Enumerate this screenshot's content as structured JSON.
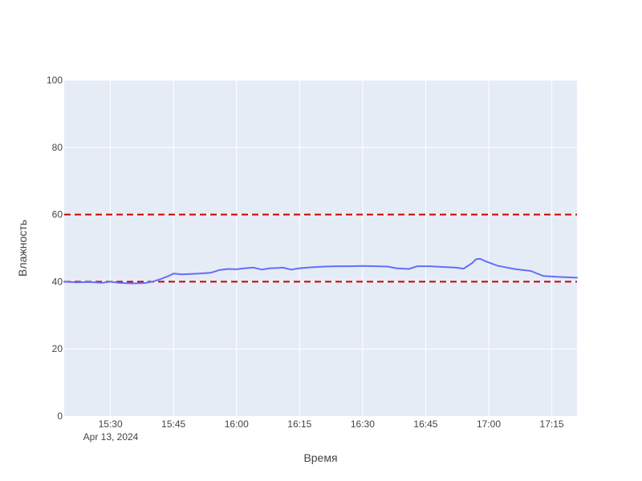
{
  "chart_data": {
    "type": "line",
    "xlabel": "Время",
    "ylabel": "Влажность",
    "x_date_label": "Apr 13, 2024",
    "xlim": [
      "15:19",
      "17:21"
    ],
    "ylim": [
      0,
      100
    ],
    "x_ticks": [
      "15:30",
      "15:45",
      "16:00",
      "16:15",
      "16:30",
      "16:45",
      "17:00",
      "17:15"
    ],
    "y_ticks": [
      0,
      20,
      40,
      60,
      80,
      100
    ],
    "grid": true,
    "colors": {
      "plot_bg": "#e5ecf6",
      "grid": "#ffffff",
      "series": "#636efa",
      "threshold": "#cc0000",
      "text": "#444444"
    },
    "thresholds": [
      {
        "value": 60,
        "style": "dashed"
      },
      {
        "value": 40,
        "style": "dashed"
      }
    ],
    "series": [
      {
        "x": [
          "15:19",
          "15:22",
          "15:25",
          "15:28",
          "15:30",
          "15:32",
          "15:35",
          "15:38",
          "15:40",
          "15:42",
          "15:44",
          "15:45",
          "15:47",
          "15:49",
          "15:51",
          "15:54",
          "15:56",
          "15:58",
          "16:00",
          "16:02",
          "16:04",
          "16:06",
          "16:08",
          "16:10",
          "16:11",
          "16:13",
          "16:15",
          "16:18",
          "16:21",
          "16:24",
          "16:27",
          "16:30",
          "16:33",
          "16:36",
          "16:38",
          "16:41",
          "16:43",
          "16:46",
          "16:49",
          "16:52",
          "16:54",
          "16:56",
          "16:57",
          "16:58",
          "16:59",
          "17:02",
          "17:06",
          "17:10",
          "17:13",
          "17:17",
          "17:21"
        ],
        "y": [
          40.0,
          39.8,
          39.9,
          39.7,
          40.0,
          39.7,
          39.5,
          39.6,
          40.0,
          40.8,
          41.8,
          42.4,
          42.2,
          42.3,
          42.4,
          42.7,
          43.5,
          43.8,
          43.7,
          44.0,
          44.2,
          43.6,
          44.0,
          44.1,
          44.2,
          43.6,
          44.0,
          44.3,
          44.5,
          44.6,
          44.6,
          44.7,
          44.6,
          44.5,
          44.0,
          43.8,
          44.6,
          44.6,
          44.4,
          44.2,
          43.9,
          45.5,
          46.7,
          46.8,
          46.2,
          44.8,
          43.8,
          43.2,
          41.7,
          41.4,
          41.2
        ]
      }
    ]
  }
}
